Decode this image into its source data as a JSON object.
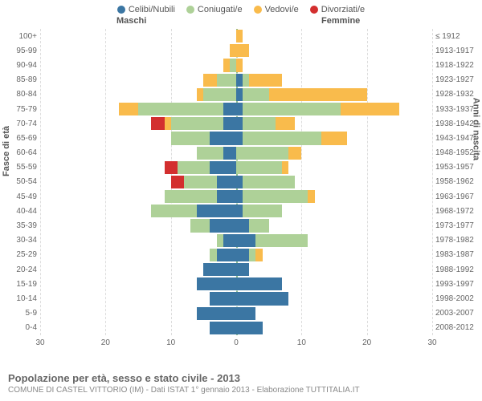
{
  "legend": [
    {
      "label": "Celibi/Nubili",
      "color": "#3b76a3"
    },
    {
      "label": "Coniugati/e",
      "color": "#aed198"
    },
    {
      "label": "Vedovi/e",
      "color": "#f9bb4c"
    },
    {
      "label": "Divorziati/e",
      "color": "#d32f2f"
    }
  ],
  "top_labels": {
    "male": "Maschi",
    "female": "Femmine"
  },
  "axis_labels": {
    "left": "Fasce di età",
    "right": "Anni di nascita"
  },
  "x_axis": {
    "min": -30,
    "max": 30,
    "ticks": [
      30,
      20,
      10,
      0,
      10,
      20,
      30
    ],
    "tick_positions": [
      -30,
      -20,
      -10,
      0,
      10,
      20,
      30
    ]
  },
  "colors": {
    "celibi": "#3b76a3",
    "coniugati": "#aed198",
    "vedovi": "#f9bb4c",
    "divorziati": "#d32f2f",
    "grid": "#dddddd",
    "center": "#8fbf8f",
    "text": "#666666"
  },
  "rows": [
    {
      "age": "100+",
      "birth": "≤ 1912",
      "m": {
        "cel": 0,
        "con": 0,
        "ved": 0,
        "div": 0
      },
      "f": {
        "cel": 0,
        "con": 0,
        "ved": 1,
        "div": 0
      }
    },
    {
      "age": "95-99",
      "birth": "1913-1917",
      "m": {
        "cel": 0,
        "con": 0,
        "ved": 1,
        "div": 0
      },
      "f": {
        "cel": 0,
        "con": 0,
        "ved": 2,
        "div": 0
      }
    },
    {
      "age": "90-94",
      "birth": "1918-1922",
      "m": {
        "cel": 0,
        "con": 1,
        "ved": 1,
        "div": 0
      },
      "f": {
        "cel": 0,
        "con": 0,
        "ved": 1,
        "div": 0
      }
    },
    {
      "age": "85-89",
      "birth": "1923-1927",
      "m": {
        "cel": 0,
        "con": 3,
        "ved": 2,
        "div": 0
      },
      "f": {
        "cel": 1,
        "con": 1,
        "ved": 5,
        "div": 0
      }
    },
    {
      "age": "80-84",
      "birth": "1928-1932",
      "m": {
        "cel": 0,
        "con": 5,
        "ved": 1,
        "div": 0
      },
      "f": {
        "cel": 1,
        "con": 4,
        "ved": 15,
        "div": 0
      }
    },
    {
      "age": "75-79",
      "birth": "1933-1937",
      "m": {
        "cel": 2,
        "con": 13,
        "ved": 3,
        "div": 0
      },
      "f": {
        "cel": 1,
        "con": 15,
        "ved": 9,
        "div": 0
      }
    },
    {
      "age": "70-74",
      "birth": "1938-1942",
      "m": {
        "cel": 2,
        "con": 8,
        "ved": 1,
        "div": 2
      },
      "f": {
        "cel": 1,
        "con": 5,
        "ved": 3,
        "div": 0
      }
    },
    {
      "age": "65-69",
      "birth": "1943-1947",
      "m": {
        "cel": 4,
        "con": 6,
        "ved": 0,
        "div": 0
      },
      "f": {
        "cel": 1,
        "con": 12,
        "ved": 4,
        "div": 0
      }
    },
    {
      "age": "60-64",
      "birth": "1948-1952",
      "m": {
        "cel": 2,
        "con": 4,
        "ved": 0,
        "div": 0
      },
      "f": {
        "cel": 0,
        "con": 8,
        "ved": 2,
        "div": 0
      }
    },
    {
      "age": "55-59",
      "birth": "1953-1957",
      "m": {
        "cel": 4,
        "con": 5,
        "ved": 0,
        "div": 2
      },
      "f": {
        "cel": 0,
        "con": 7,
        "ved": 1,
        "div": 0
      }
    },
    {
      "age": "50-54",
      "birth": "1958-1962",
      "m": {
        "cel": 3,
        "con": 5,
        "ved": 0,
        "div": 2
      },
      "f": {
        "cel": 1,
        "con": 8,
        "ved": 0,
        "div": 0
      }
    },
    {
      "age": "45-49",
      "birth": "1963-1967",
      "m": {
        "cel": 3,
        "con": 8,
        "ved": 0,
        "div": 0
      },
      "f": {
        "cel": 1,
        "con": 10,
        "ved": 1,
        "div": 0
      }
    },
    {
      "age": "40-44",
      "birth": "1968-1972",
      "m": {
        "cel": 6,
        "con": 7,
        "ved": 0,
        "div": 0
      },
      "f": {
        "cel": 1,
        "con": 6,
        "ved": 0,
        "div": 0
      }
    },
    {
      "age": "35-39",
      "birth": "1973-1977",
      "m": {
        "cel": 4,
        "con": 3,
        "ved": 0,
        "div": 0
      },
      "f": {
        "cel": 2,
        "con": 3,
        "ved": 0,
        "div": 0
      }
    },
    {
      "age": "30-34",
      "birth": "1978-1982",
      "m": {
        "cel": 2,
        "con": 1,
        "ved": 0,
        "div": 0
      },
      "f": {
        "cel": 3,
        "con": 8,
        "ved": 0,
        "div": 0
      }
    },
    {
      "age": "25-29",
      "birth": "1983-1987",
      "m": {
        "cel": 3,
        "con": 1,
        "ved": 0,
        "div": 0
      },
      "f": {
        "cel": 2,
        "con": 1,
        "ved": 1,
        "div": 0
      }
    },
    {
      "age": "20-24",
      "birth": "1988-1992",
      "m": {
        "cel": 5,
        "con": 0,
        "ved": 0,
        "div": 0
      },
      "f": {
        "cel": 2,
        "con": 0,
        "ved": 0,
        "div": 0
      }
    },
    {
      "age": "15-19",
      "birth": "1993-1997",
      "m": {
        "cel": 6,
        "con": 0,
        "ved": 0,
        "div": 0
      },
      "f": {
        "cel": 7,
        "con": 0,
        "ved": 0,
        "div": 0
      }
    },
    {
      "age": "10-14",
      "birth": "1998-2002",
      "m": {
        "cel": 4,
        "con": 0,
        "ved": 0,
        "div": 0
      },
      "f": {
        "cel": 8,
        "con": 0,
        "ved": 0,
        "div": 0
      }
    },
    {
      "age": "5-9",
      "birth": "2003-2007",
      "m": {
        "cel": 6,
        "con": 0,
        "ved": 0,
        "div": 0
      },
      "f": {
        "cel": 3,
        "con": 0,
        "ved": 0,
        "div": 0
      }
    },
    {
      "age": "0-4",
      "birth": "2008-2012",
      "m": {
        "cel": 4,
        "con": 0,
        "ved": 0,
        "div": 0
      },
      "f": {
        "cel": 4,
        "con": 0,
        "ved": 0,
        "div": 0
      }
    }
  ],
  "footer": {
    "title": "Popolazione per età, sesso e stato civile - 2013",
    "subtitle": "COMUNE DI CASTEL VITTORIO (IM) - Dati ISTAT 1° gennaio 2013 - Elaborazione TUTTITALIA.IT"
  }
}
